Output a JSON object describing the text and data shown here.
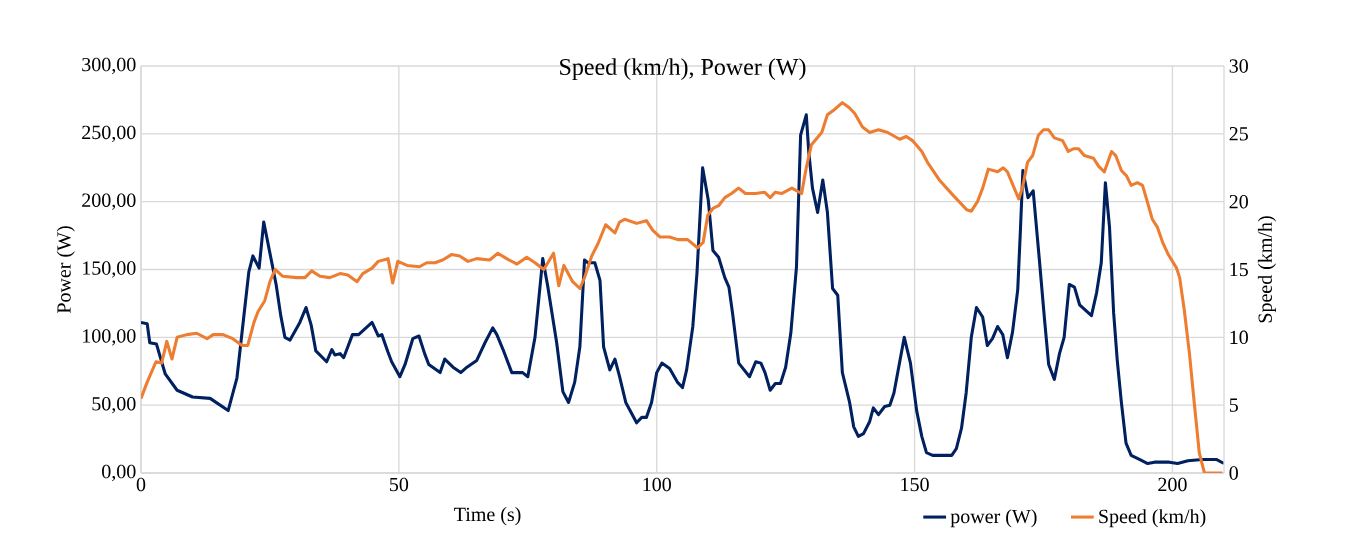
{
  "chart_data": {
    "type": "line",
    "title": "Speed (km/h),  Power (W)",
    "xlabel": "Time (s)",
    "ylabel": "Power (W)",
    "y2label": "Speed (km/h)",
    "xlim": [
      0,
      210
    ],
    "xticks": [
      0,
      50,
      100,
      150,
      200
    ],
    "ylim": [
      0,
      300
    ],
    "yticks": [
      {
        "value": 0,
        "label": "0,00"
      },
      {
        "value": 50,
        "label": "50,00"
      },
      {
        "value": 100,
        "label": "100,00"
      },
      {
        "value": 150,
        "label": "150,00"
      },
      {
        "value": 200,
        "label": "200,00"
      },
      {
        "value": 250,
        "label": "250,00"
      },
      {
        "value": 300,
        "label": "300,00"
      }
    ],
    "y2lim": [
      0,
      30
    ],
    "y2ticks": [
      0,
      5,
      10,
      15,
      20,
      25,
      30
    ],
    "grid": true,
    "legend": "bottom",
    "marker": "none",
    "line_style": "solid",
    "series": [
      {
        "name": "power (W)",
        "color": "#002060",
        "x": [
          0,
          1.2,
          1.7,
          3,
          4.7,
          7,
          10,
          13.4,
          16.9,
          18.6,
          20.9,
          21.7,
          22.9,
          23.8,
          26.2,
          27.1,
          27.9,
          28.9,
          30.8,
          32,
          33,
          33.9,
          36,
          37,
          37.6,
          38.6,
          39.3,
          41,
          42.2,
          44.8,
          46,
          46.7,
          47.9,
          48.6,
          50.2,
          51.2,
          52.7,
          53.9,
          55,
          55.8,
          58,
          58.9,
          60.5,
          62,
          63.2,
          65.1,
          66.7,
          68.2,
          69,
          70.2,
          71.9,
          74,
          75,
          76.4,
          77.1,
          77.9,
          78.9,
          80.6,
          81.8,
          82.9,
          84.1,
          85.1,
          86,
          86.6,
          88,
          89,
          89.7,
          90.9,
          91.9,
          92.8,
          94,
          96.1,
          97.1,
          98,
          99,
          100,
          101,
          102.5,
          104,
          105,
          105.8,
          107,
          107.8,
          108.9,
          110,
          110.9,
          112,
          113.2,
          114,
          114.7,
          115.9,
          118,
          119.2,
          120.2,
          121,
          122,
          123,
          124,
          125,
          126,
          127.1,
          127.9,
          129,
          129.5,
          130.2,
          131.2,
          132.2,
          133.1,
          134.1,
          135.1,
          136,
          137.4,
          138.2,
          139.1,
          140.1,
          141.3,
          142,
          143,
          144.2,
          145.2,
          146,
          148,
          149.2,
          150.4,
          151.4,
          152.3,
          153.5,
          156.2,
          157.2,
          158.1,
          159.1,
          160,
          161,
          162,
          163.2,
          164.1,
          165.1,
          166.1,
          167.1,
          168,
          169,
          170,
          170.5,
          171,
          172,
          173,
          174.2,
          175.2,
          176,
          177.1,
          178.1,
          179,
          180,
          181,
          182,
          184.3,
          185.3,
          186.2,
          187,
          187.8,
          188.6,
          189.3,
          190.1,
          191,
          192,
          193.6,
          195.2,
          196.5,
          199.4,
          201,
          203,
          205.8,
          208.5,
          210
        ],
        "values": [
          111,
          110,
          96,
          95,
          73,
          61,
          56,
          55,
          46,
          70,
          148,
          160,
          151,
          185,
          139,
          116,
          100,
          98,
          111,
          122,
          109,
          90,
          82,
          91,
          87,
          88,
          85,
          102,
          102,
          111,
          101,
          102,
          89,
          82,
          71,
          80,
          99,
          101,
          88,
          80,
          74,
          84,
          78,
          74,
          78,
          83,
          96,
          107,
          102,
          91,
          74,
          74,
          71,
          100,
          127,
          158,
          137,
          96,
          60,
          52,
          67,
          93,
          157,
          155,
          155,
          142,
          93,
          76,
          84,
          71,
          52,
          37,
          41,
          41,
          52,
          74,
          81,
          77,
          67,
          63,
          76,
          108,
          147,
          225,
          201,
          164,
          159,
          144,
          137,
          118,
          81,
          71,
          82,
          81,
          74,
          61,
          66,
          66,
          78,
          103,
          152,
          249,
          264,
          236,
          210,
          192,
          216,
          192,
          136,
          131,
          74,
          52,
          34,
          27,
          29,
          38,
          48,
          43,
          49,
          50,
          59,
          100,
          81,
          46,
          27,
          15,
          13,
          13,
          13,
          18,
          33,
          59,
          100,
          122,
          115,
          94,
          99,
          108,
          102,
          85,
          104,
          135,
          177,
          223,
          203,
          208,
          157,
          113,
          80,
          69,
          88,
          100,
          139,
          137,
          124,
          116,
          133,
          155,
          214,
          181,
          118,
          83,
          52,
          22,
          13,
          10,
          7,
          8,
          8,
          7,
          9,
          10,
          10,
          7
        ]
      },
      {
        "name": "Speed (km/h)",
        "color": "#ed7d31",
        "axis": "y2",
        "x": [
          0,
          1.2,
          2.9,
          4,
          5,
          6,
          7,
          8.9,
          10.8,
          12.8,
          14,
          15.9,
          17.8,
          19.6,
          20.7,
          21.9,
          22.7,
          24,
          25,
          26,
          27.5,
          30.2,
          31.8,
          33.1,
          34.7,
          36.6,
          38.6,
          40.1,
          41.9,
          43,
          44.8,
          46,
          47.9,
          48.8,
          49.8,
          51.6,
          54,
          55.4,
          57,
          58.5,
          60.2,
          61.8,
          63.4,
          65.1,
          67.6,
          69.2,
          70.9,
          72.9,
          74.8,
          76.4,
          78.1,
          80,
          81,
          82,
          83.7,
          85.1,
          86,
          87.4,
          88.6,
          90.1,
          91.9,
          92.8,
          93.8,
          96.1,
          98,
          99.2,
          100.6,
          102.5,
          104.1,
          106,
          107.9,
          109,
          109.9,
          110.9,
          112,
          113.2,
          114.5,
          115.9,
          117.2,
          119.2,
          120.9,
          122,
          123,
          124.2,
          126.2,
          128.1,
          129,
          130,
          132,
          133.1,
          134.5,
          136,
          137.4,
          138.4,
          139.9,
          141.3,
          143,
          144.8,
          147.1,
          148.4,
          149.6,
          151.4,
          152.5,
          154.8,
          157.4,
          160.1,
          161,
          162.2,
          163.2,
          164.3,
          166.1,
          167.2,
          168,
          170.2,
          170.9,
          171.9,
          172.9,
          174,
          175,
          176,
          177.1,
          178.7,
          179.8,
          180.8,
          181.8,
          182.9,
          184.7,
          185.7,
          186.8,
          188.2,
          189,
          190.1,
          191.1,
          192,
          193.2,
          194.2,
          195.2,
          196.1,
          197.1,
          198.1,
          199.2,
          200.8,
          201.4,
          202.3,
          203.3,
          204.3,
          205.2,
          206.2,
          209.7
        ],
        "values": [
          5.5,
          6.7,
          8.2,
          8.1,
          9.7,
          8.4,
          10.0,
          10.2,
          10.3,
          9.9,
          10.2,
          10.2,
          9.9,
          9.4,
          9.4,
          11.1,
          11.9,
          12.7,
          14.1,
          15.0,
          14.5,
          14.4,
          14.4,
          14.9,
          14.5,
          14.4,
          14.7,
          14.6,
          14.1,
          14.7,
          15.1,
          15.6,
          15.8,
          14.0,
          15.6,
          15.3,
          15.2,
          15.5,
          15.5,
          15.7,
          16.1,
          16.0,
          15.6,
          15.8,
          15.7,
          16.2,
          15.8,
          15.4,
          15.9,
          15.5,
          15.0,
          16.2,
          13.8,
          15.3,
          14.1,
          13.6,
          14.4,
          16.0,
          16.9,
          18.3,
          17.7,
          18.5,
          18.7,
          18.4,
          18.6,
          17.9,
          17.4,
          17.4,
          17.2,
          17.2,
          16.6,
          17.0,
          19.0,
          19.5,
          19.7,
          20.3,
          20.6,
          21.0,
          20.6,
          20.6,
          20.7,
          20.3,
          20.7,
          20.6,
          21.0,
          20.6,
          22.5,
          24.2,
          25.1,
          26.4,
          26.8,
          27.3,
          26.9,
          26.5,
          25.5,
          25.1,
          25.3,
          25.1,
          24.6,
          24.8,
          24.5,
          23.7,
          22.9,
          21.6,
          20.5,
          19.4,
          19.3,
          20.0,
          21.0,
          22.4,
          22.2,
          22.5,
          22.2,
          20.2,
          21.0,
          22.9,
          23.4,
          24.9,
          25.3,
          25.3,
          24.7,
          24.5,
          23.7,
          23.9,
          23.9,
          23.4,
          23.2,
          22.6,
          22.2,
          23.7,
          23.4,
          22.3,
          21.9,
          21.2,
          21.4,
          21.2,
          19.9,
          18.7,
          18.1,
          17.0,
          16.1,
          15.1,
          14.4,
          12.0,
          8.8,
          4.9,
          1.5,
          0,
          0
        ]
      }
    ]
  }
}
